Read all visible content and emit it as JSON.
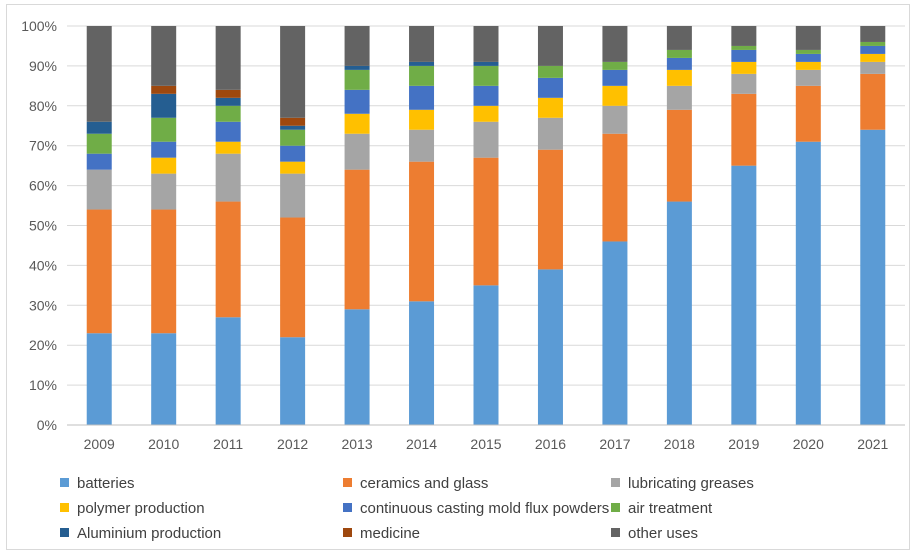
{
  "chart_data": {
    "type": "bar",
    "stacked": true,
    "normalized": true,
    "title": "",
    "xlabel": "",
    "ylabel": "",
    "ylim": [
      0,
      100
    ],
    "y_ticks": [
      "0%",
      "10%",
      "20%",
      "30%",
      "40%",
      "50%",
      "60%",
      "70%",
      "80%",
      "90%",
      "100%"
    ],
    "grid": "horizontal",
    "legend_position": "bottom",
    "categories": [
      "2009",
      "2010",
      "2011",
      "2012",
      "2013",
      "2014",
      "2015",
      "2016",
      "2017",
      "2018",
      "2019",
      "2020",
      "2021"
    ],
    "series": [
      {
        "name": "batteries",
        "color": "#5b9bd5",
        "values": [
          23,
          23,
          27,
          22,
          29,
          31,
          35,
          39,
          46,
          56,
          65,
          71,
          74
        ]
      },
      {
        "name": "ceramics and glass",
        "color": "#ed7d31",
        "values": [
          31,
          31,
          29,
          30,
          35,
          35,
          32,
          30,
          27,
          23,
          18,
          14,
          14
        ]
      },
      {
        "name": "lubricating greases",
        "color": "#a5a5a5",
        "values": [
          10,
          9,
          12,
          11,
          9,
          8,
          9,
          8,
          7,
          6,
          5,
          4,
          3
        ]
      },
      {
        "name": "polymer production",
        "color": "#ffc000",
        "values": [
          0,
          4,
          3,
          3,
          5,
          5,
          4,
          5,
          5,
          4,
          3,
          2,
          2
        ]
      },
      {
        "name": "continuous casting mold flux powders",
        "color": "#4472c4",
        "values": [
          4,
          4,
          5,
          4,
          6,
          6,
          5,
          5,
          4,
          3,
          3,
          2,
          2
        ]
      },
      {
        "name": "air treatment",
        "color": "#70ad47",
        "values": [
          5,
          6,
          4,
          4,
          5,
          5,
          5,
          3,
          2,
          2,
          1,
          1,
          1
        ]
      },
      {
        "name": "Aluminium production",
        "color": "#255e91",
        "values": [
          3,
          6,
          2,
          1,
          1,
          1,
          1,
          0,
          0,
          0,
          0,
          0,
          0
        ]
      },
      {
        "name": "medicine",
        "color": "#9e480e",
        "values": [
          0,
          2,
          2,
          2,
          0,
          0,
          0,
          0,
          0,
          0,
          0,
          0,
          0
        ]
      },
      {
        "name": "other uses",
        "color": "#636363",
        "values": [
          24,
          15,
          16,
          23,
          10,
          9,
          9,
          10,
          9,
          6,
          5,
          6,
          4
        ]
      }
    ]
  }
}
